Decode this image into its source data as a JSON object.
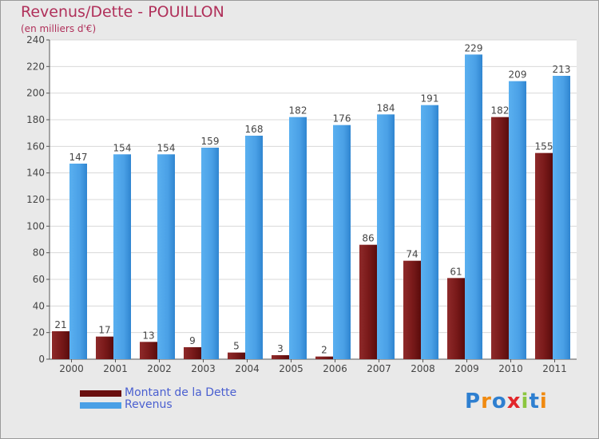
{
  "chart_data": {
    "type": "bar",
    "title": "Revenus/Dette - POUILLON",
    "subtitle": "(en milliers d'€)",
    "categories": [
      "2000",
      "2001",
      "2002",
      "2003",
      "2004",
      "2005",
      "2006",
      "2007",
      "2008",
      "2009",
      "2010",
      "2011"
    ],
    "series": [
      {
        "name": "Montant de la Dette",
        "color": "#7a1a1a",
        "values": [
          21,
          17,
          13,
          9,
          5,
          3,
          2,
          86,
          74,
          61,
          182,
          155
        ]
      },
      {
        "name": "Revenus",
        "color": "#4aa0e6",
        "values": [
          147,
          154,
          154,
          159,
          168,
          182,
          176,
          184,
          191,
          229,
          209,
          213
        ]
      }
    ],
    "ylim": [
      0,
      240
    ],
    "yticks": [
      0,
      20,
      40,
      60,
      80,
      100,
      120,
      140,
      160,
      180,
      200,
      220,
      240
    ],
    "grid": true,
    "legend": "bottom-left"
  },
  "legend": {
    "debt_label": "Montant de la Dette",
    "revenue_label": "Revenus"
  },
  "logo": {
    "text": "Proxiti"
  }
}
